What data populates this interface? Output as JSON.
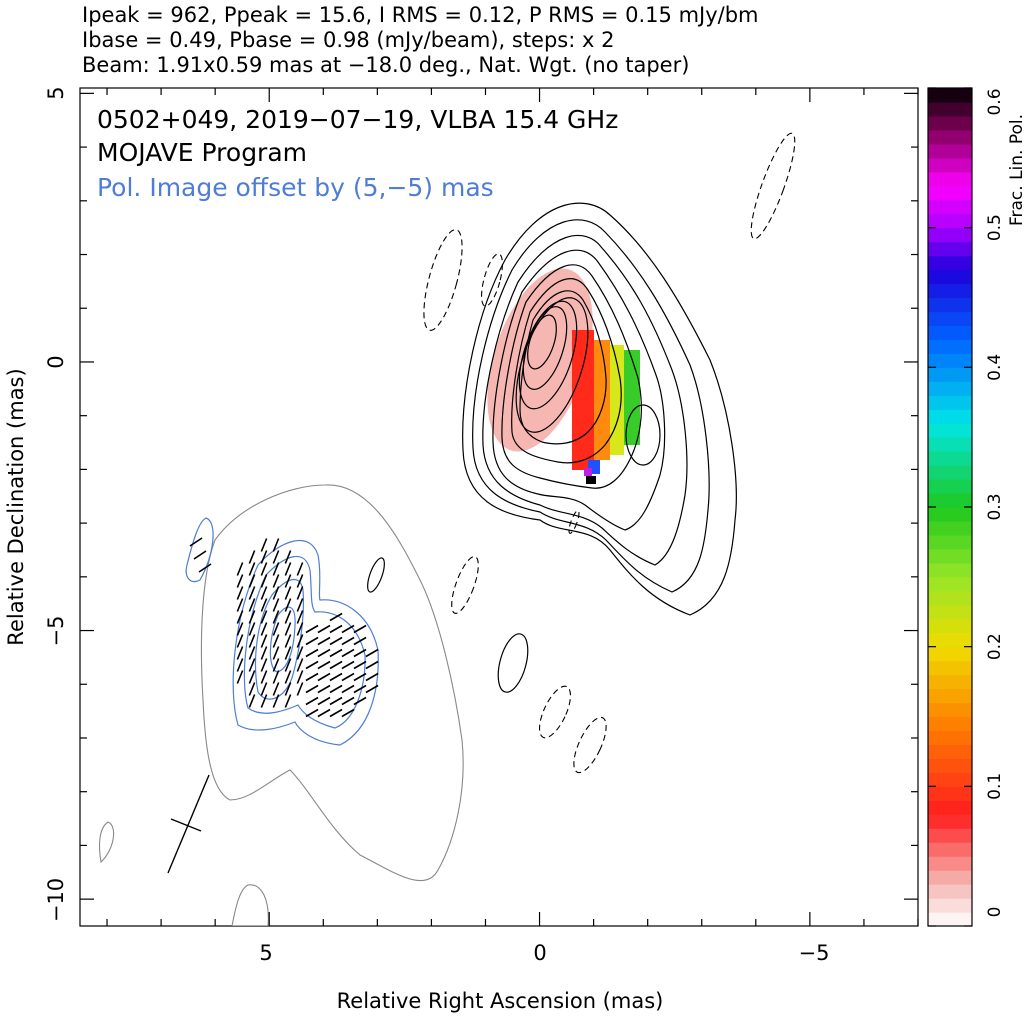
{
  "chart_data": {
    "type": "contour",
    "header_lines": [
      "Ipeak = 962, Ppeak = 15.6, I RMS = 0.12, P RMS = 0.15 mJy/bm",
      "Ibase = 0.49, Pbase = 0.98 (mJy/beam), steps: x 2",
      "Beam: 1.91x0.59 mas at −18.0 deg., Nat. Wgt. (no taper)"
    ],
    "annotations": [
      "0502+049, 2019−07−19, VLBA 15.4 GHz",
      "MOJAVE Program",
      "Pol. Image offset by (5,−5) mas"
    ],
    "xlabel": "Relative Right Ascension (mas)",
    "ylabel": "Relative Declination (mas)",
    "xlim": [
      8.5,
      -7
    ],
    "ylim": [
      -10.5,
      5.1
    ],
    "xticks": [
      5,
      0,
      -5
    ],
    "xtick_labels": [
      "5",
      "0",
      "−5"
    ],
    "yticks": [
      5,
      0,
      -5,
      -10
    ],
    "ytick_labels": [
      "5",
      "0",
      "−5",
      "−10"
    ],
    "colorbar": {
      "label": "Frac. Lin. Pol.",
      "range": [
        0,
        0.6
      ],
      "ticks": [
        0,
        0.1,
        0.2,
        0.3,
        0.4,
        0.5,
        0.6
      ],
      "tick_labels": [
        "0",
        "0.1",
        "0.2",
        "0.3",
        "0.4",
        "0.5",
        "0.6"
      ]
    },
    "stokes_i_contours_mJy_per_beam": [
      0.49,
      0.98,
      1.96,
      3.92,
      7.84,
      15.7,
      31.4,
      62.7,
      125,
      251,
      502
    ],
    "pol_contours_mJy_per_beam": [
      0.98,
      1.96,
      3.92,
      7.84
    ],
    "peak_I_mJy_per_beam": 962,
    "peak_P_mJy_per_beam": 15.6,
    "beam": {
      "major_mas": 1.91,
      "minor_mas": 0.59,
      "pa_deg": -18.0
    },
    "pol_offset_mas": [
      5,
      -5
    ],
    "frac_pol_map": [
      {
        "ra_range": [
          0.8,
          -0.6
        ],
        "dec_range": [
          1.4,
          -1.8
        ],
        "value": 0.03
      },
      {
        "ra_range": [
          -0.6,
          -1.0
        ],
        "dec_range": [
          0.6,
          -2.0
        ],
        "value": 0.1
      },
      {
        "ra_range": [
          -1.0,
          -1.3
        ],
        "dec_range": [
          0.4,
          -1.8
        ],
        "value": 0.18
      },
      {
        "ra_range": [
          -1.3,
          -1.7
        ],
        "dec_range": [
          0.4,
          -1.5
        ],
        "value": 0.27
      },
      {
        "ra_range": [
          -0.9,
          -1.1
        ],
        "dec_range": [
          -1.9,
          -2.1
        ],
        "value": 0.42
      },
      {
        "ra_range": [
          -0.9,
          -1.0
        ],
        "dec_range": [
          -2.1,
          -2.3
        ],
        "value": 0.6
      }
    ],
    "colors": {
      "contour": "#000000",
      "pol_contour": "#4e7dd6",
      "lowest_contour": "#888888",
      "annotation_blue": "#4e7dd6"
    }
  }
}
